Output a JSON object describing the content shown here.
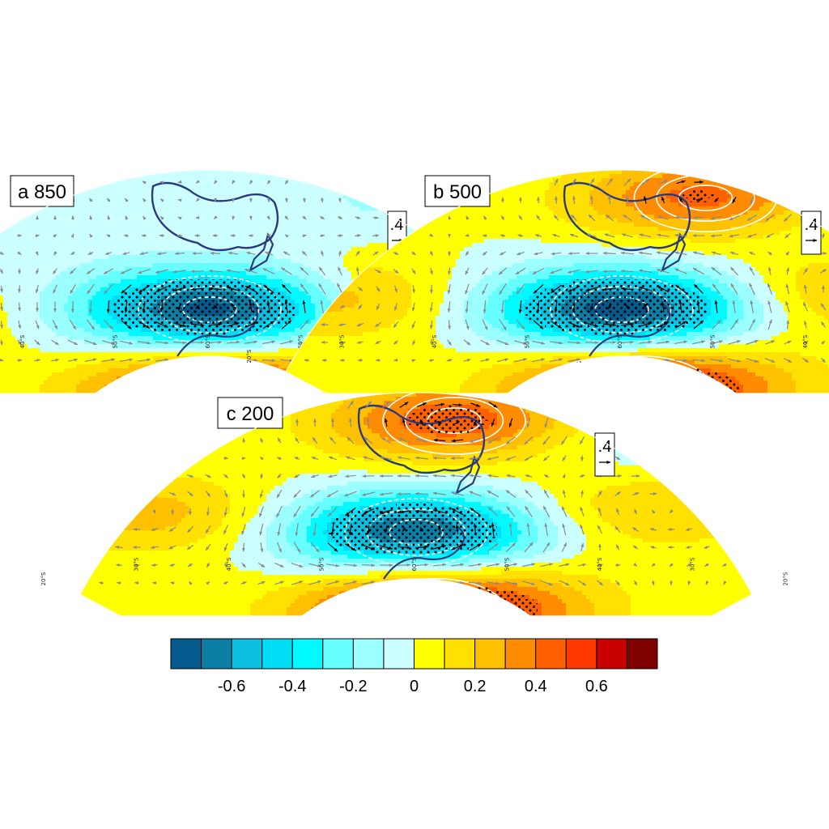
{
  "panels": [
    {
      "id": "a",
      "label": "a 850",
      "ref_vector_label": ".4",
      "lat_labels": [
        "20°S",
        "30°S",
        "40°S",
        "50°S",
        "60°S",
        "50°S",
        "40°S",
        "30°S",
        "20°S"
      ],
      "centers": [
        {
          "dx": 0.0,
          "dy": 0.25,
          "v": -0.75
        },
        {
          "dx": 0.02,
          "dy": -0.2,
          "v": 0.65
        },
        {
          "dx": 0.6,
          "dy": 0.35,
          "v": 0.22
        },
        {
          "dx": -0.88,
          "dy": 0.22,
          "v": 0.18
        },
        {
          "dx": 0.3,
          "dy": -0.05,
          "v": 0.05
        },
        {
          "dx": 0.5,
          "dy": 0.85,
          "v": -0.12
        },
        {
          "dx": -0.55,
          "dy": 0.75,
          "v": -0.08
        }
      ]
    },
    {
      "id": "b",
      "label": "b 500",
      "ref_vector_label": ".4",
      "lat_labels": [
        "20°S",
        "30°S",
        "40°S",
        "50°S",
        "60°S",
        "50°S",
        "40°S",
        "30°S",
        "20°S"
      ],
      "centers": [
        {
          "dx": 0.0,
          "dy": 0.25,
          "v": -0.78
        },
        {
          "dx": 0.05,
          "dy": -0.18,
          "v": 0.68
        },
        {
          "dx": 0.22,
          "dy": 0.85,
          "v": 0.45
        },
        {
          "dx": 0.6,
          "dy": 0.35,
          "v": 0.25
        },
        {
          "dx": -0.75,
          "dy": 0.3,
          "v": 0.22
        },
        {
          "dx": 0.55,
          "dy": 0.7,
          "v": -0.1
        },
        {
          "dx": 0.35,
          "dy": -0.05,
          "v": 0.05
        }
      ]
    },
    {
      "id": "c",
      "label": "c 200",
      "ref_vector_label": ".4",
      "lat_labels": [
        "20°S",
        "30°S",
        "40°S",
        "50°S",
        "60°S",
        "50°S",
        "40°S",
        "30°S",
        "20°S"
      ],
      "centers": [
        {
          "dx": 0.0,
          "dy": 0.25,
          "v": -0.72
        },
        {
          "dx": 0.05,
          "dy": -0.18,
          "v": 0.75
        },
        {
          "dx": 0.1,
          "dy": 0.85,
          "v": 0.48
        },
        {
          "dx": 0.6,
          "dy": 0.38,
          "v": 0.22
        },
        {
          "dx": -0.7,
          "dy": 0.35,
          "v": 0.25
        },
        {
          "dx": 0.55,
          "dy": 0.72,
          "v": -0.12
        },
        {
          "dx": 0.35,
          "dy": 0.0,
          "v": 0.05
        }
      ]
    }
  ],
  "colorbar": {
    "colors": [
      "#045a8d",
      "#0b7fa6",
      "#0abfe0",
      "#00dcf6",
      "#00faff",
      "#66ffff",
      "#9cffff",
      "#ccffff",
      "#ffff00",
      "#ffe000",
      "#ffc000",
      "#ff8c00",
      "#ff6000",
      "#ff3800",
      "#c80000",
      "#800000"
    ],
    "levels": [
      -0.7,
      -0.6,
      -0.5,
      -0.4,
      -0.3,
      -0.2,
      -0.1,
      0,
      0.1,
      0.2,
      0.3,
      0.4,
      0.5,
      0.6,
      0.7
    ],
    "tick_labels": [
      "-0.6",
      "-0.4",
      "-0.2",
      "0",
      "0.2",
      "0.4",
      "0.6"
    ]
  },
  "colors": {
    "coastline": "#2b3a80",
    "contour": "#ffffff",
    "vector_significant": "#000000",
    "vector_insignificant": "#8a8a8a"
  }
}
